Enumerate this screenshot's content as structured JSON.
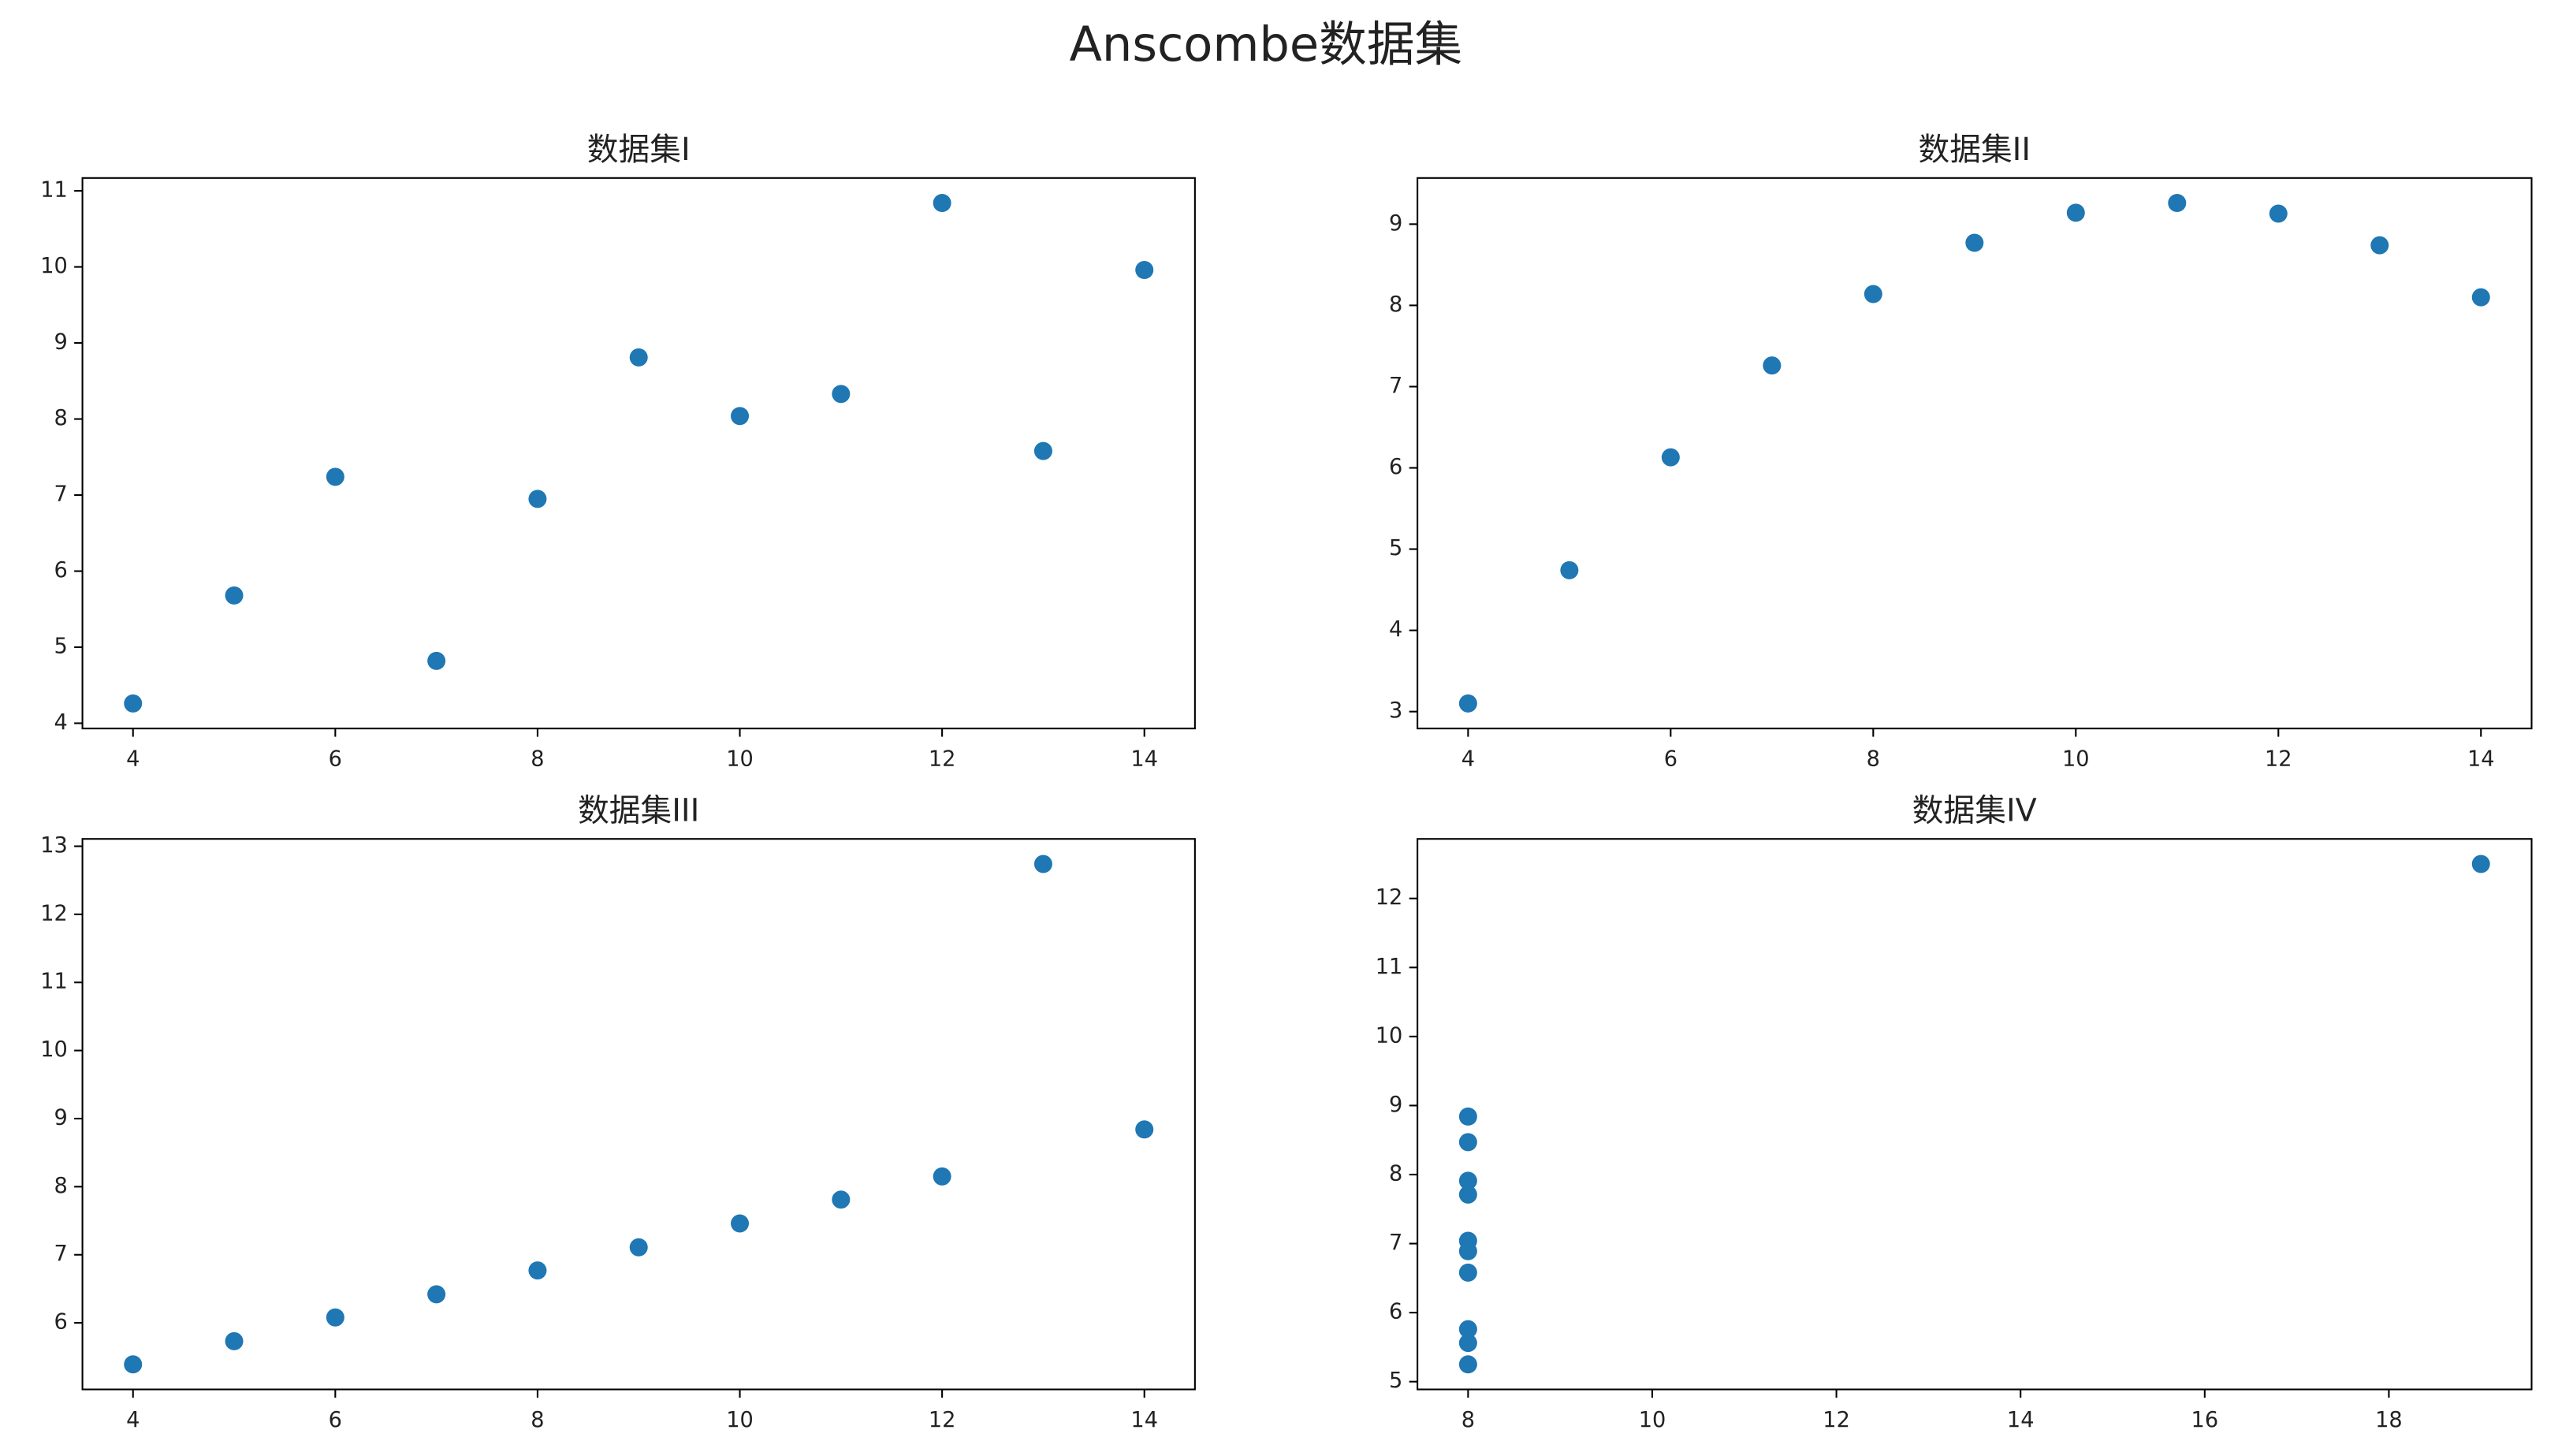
{
  "title": "Anscombe数据集",
  "chart_data": [
    {
      "type": "scatter",
      "title": "数据集I",
      "color": "#1f77b4",
      "x": [
        10,
        8,
        13,
        9,
        11,
        14,
        6,
        4,
        12,
        7,
        5
      ],
      "y": [
        8.04,
        6.95,
        7.58,
        8.81,
        8.33,
        9.96,
        7.24,
        4.26,
        10.84,
        4.82,
        5.68
      ],
      "xlim": [
        3.5,
        14.5
      ],
      "ylim": [
        3.931,
        11.169
      ],
      "xticks": [
        4,
        6,
        8,
        10,
        12,
        14
      ],
      "yticks": [
        4,
        5,
        6,
        7,
        8,
        9,
        10,
        11
      ]
    },
    {
      "type": "scatter",
      "title": "数据集II",
      "color": "#1f77b4",
      "x": [
        10,
        8,
        13,
        9,
        11,
        14,
        6,
        4,
        12,
        7,
        5
      ],
      "y": [
        9.14,
        8.14,
        8.74,
        8.77,
        9.26,
        8.1,
        6.13,
        3.1,
        9.13,
        7.26,
        4.74
      ],
      "xlim": [
        3.5,
        14.5
      ],
      "ylim": [
        2.792,
        9.568
      ],
      "xticks": [
        4,
        6,
        8,
        10,
        12,
        14
      ],
      "yticks": [
        3,
        4,
        5,
        6,
        7,
        8,
        9
      ]
    },
    {
      "type": "scatter",
      "title": "数据集III",
      "color": "#1f77b4",
      "x": [
        10,
        8,
        13,
        9,
        11,
        14,
        6,
        4,
        12,
        7,
        5
      ],
      "y": [
        7.46,
        6.77,
        12.74,
        7.11,
        7.81,
        8.84,
        6.08,
        5.39,
        8.15,
        6.42,
        5.73
      ],
      "xlim": [
        3.5,
        14.5
      ],
      "ylim": [
        5.0225,
        13.1075
      ],
      "xticks": [
        4,
        6,
        8,
        10,
        12,
        14
      ],
      "yticks": [
        6,
        7,
        8,
        9,
        10,
        11,
        12,
        13
      ]
    },
    {
      "type": "scatter",
      "title": "数据集IV",
      "color": "#1f77b4",
      "x": [
        8,
        8,
        8,
        8,
        8,
        8,
        8,
        19,
        8,
        8,
        8
      ],
      "y": [
        6.58,
        5.76,
        7.71,
        8.84,
        8.47,
        7.04,
        5.25,
        12.5,
        5.56,
        7.91,
        6.89
      ],
      "xlim": [
        7.45,
        19.55
      ],
      "ylim": [
        4.8875,
        12.8625
      ],
      "xticks": [
        8,
        10,
        12,
        14,
        16,
        18
      ],
      "yticks": [
        5,
        6,
        7,
        8,
        9,
        10,
        11,
        12
      ]
    }
  ]
}
